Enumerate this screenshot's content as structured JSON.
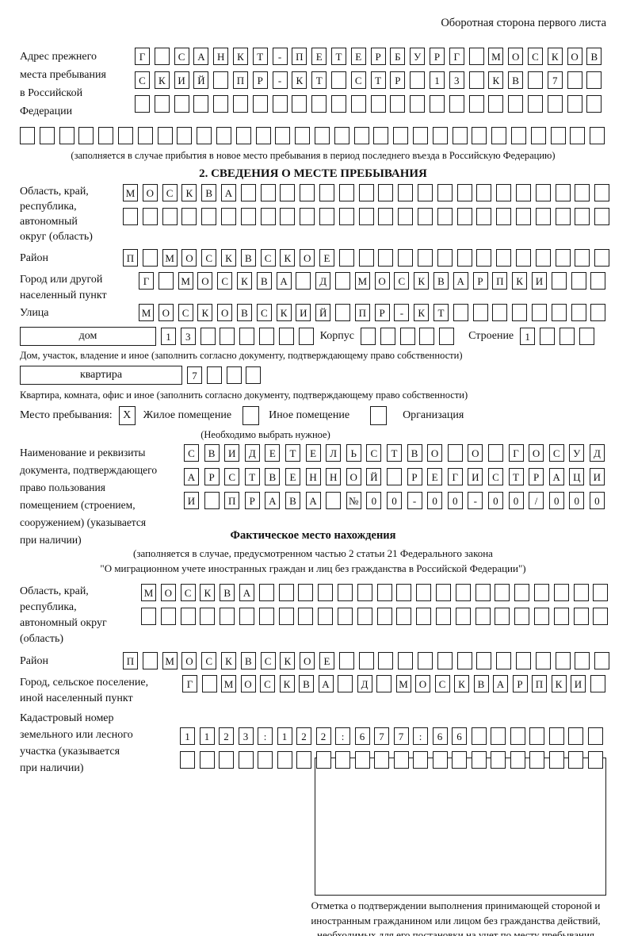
{
  "header": {
    "title": "Оборотная сторона первого листа"
  },
  "prev_address": {
    "label_lines": [
      "Адрес прежнего",
      "места пребывания",
      "в Российской",
      "Федерации"
    ],
    "rows": [
      {
        "c": 24,
        "v": "Г САНКТ-ПЕТЕРБУРГ МОСКОВ"
      },
      {
        "c": 24,
        "v": "СКИЙ ПР-КТ СТР 13 КВ 7"
      },
      {
        "c": 24,
        "v": ""
      }
    ],
    "full_row": {
      "c": 30,
      "v": ""
    },
    "note": "(заполняется в случае прибытия в новое место пребывания в период последнего въезда в Российскую Федерацию)"
  },
  "section2": {
    "title": "2. СВЕДЕНИЯ О МЕСТЕ ПРЕБЫВАНИЯ",
    "region": {
      "label_lines": [
        "Область, край,",
        "республика,",
        "автономный",
        "округ (область)"
      ],
      "rows": [
        {
          "c": 25,
          "v": "МОСКВА"
        },
        {
          "c": 25,
          "v": ""
        }
      ]
    },
    "district": {
      "label": "Район",
      "row": {
        "c": 25,
        "v": "П МОСКВСКОЕ"
      }
    },
    "city": {
      "label_lines": [
        "Город или другой",
        "населенный пункт"
      ],
      "row": {
        "c": 24,
        "v": "Г МОСКВА Д МОСКВАРПКИ"
      }
    },
    "street": {
      "label": "Улица",
      "row": {
        "c": 24,
        "v": "МОСКОВСКИЙ ПР-КТ"
      }
    },
    "house_line": {
      "house_label": "дом",
      "house_row": {
        "c": 8,
        "v": "13"
      },
      "korpus_label": "Корпус",
      "korpus_row": {
        "c": 5,
        "v": ""
      },
      "stroenie_label": "Строение",
      "stroenie_row": {
        "c": 4,
        "v": "1"
      }
    },
    "house_note": "Дом, участок, владение и иное (заполнить согласно документу, подтверждающему право собственности)",
    "apartment_line": {
      "label": "квартира",
      "row": {
        "c": 4,
        "v": "7"
      }
    },
    "apartment_note": "Квартира, комната, офис и иное (заполнить согласно документу, подтверждающему право собственности)",
    "stay_type": {
      "label": "Место пребывания:",
      "options": [
        {
          "label": "Жилое помещение",
          "mark": "X"
        },
        {
          "label": "Иное помещение",
          "mark": ""
        },
        {
          "label": "Организация",
          "mark": ""
        }
      ],
      "hint": "(Необходимо выбрать нужное)"
    },
    "document": {
      "label_lines": [
        "Наименование и реквизиты",
        "документа, подтверждающего",
        "право пользования",
        "помещением (строением,",
        "сооружением) (указывается",
        "при наличии)"
      ],
      "rows": [
        {
          "c": 21,
          "v": "СВИДЕТЕЛЬСТВО О ГОСУД"
        },
        {
          "c": 21,
          "v": "АРСТВЕННОЙ РЕГИСТРАЦИ"
        },
        {
          "c": 21,
          "v": "И ПРАВА №00-00-00/000"
        }
      ]
    }
  },
  "actual_location": {
    "title": "Фактическое место нахождения",
    "note_lines": [
      "(заполняется в случае, предусмотренном частью 2 статьи 21 Федерального закона",
      "\"О миграционном учете иностранных граждан и лиц без гражданства в Российской Федерации\")"
    ],
    "region": {
      "label_lines": [
        "Область, край,",
        "республика,",
        "автономный округ",
        "(область)"
      ],
      "rows": [
        {
          "c": 24,
          "v": "МОСКВА"
        },
        {
          "c": 24,
          "v": ""
        }
      ]
    },
    "district": {
      "label": "Район",
      "row": {
        "c": 25,
        "v": "П МОСКВСКОЕ"
      }
    },
    "city": {
      "label_lines": [
        "Город, сельское поселение,",
        "иной населенный пункт"
      ],
      "row": {
        "c": 22,
        "v": "Г МОСКВА Д МОСКВАРПКИ"
      }
    },
    "cadastre": {
      "label_lines": [
        "Кадастровый номер",
        "земельного или лесного",
        "участка (указывается",
        "при наличии)"
      ],
      "rows": [
        {
          "c": 22,
          "v": "1123:122:677:66"
        },
        {
          "c": 22,
          "v": ""
        }
      ]
    },
    "stamp_caption": "Отметка о подтверждении выполнения принимающей стороной и иностранным гражданином или лицом без гражданства действий, необходимых для его постановки на учет по месту пребывания"
  }
}
